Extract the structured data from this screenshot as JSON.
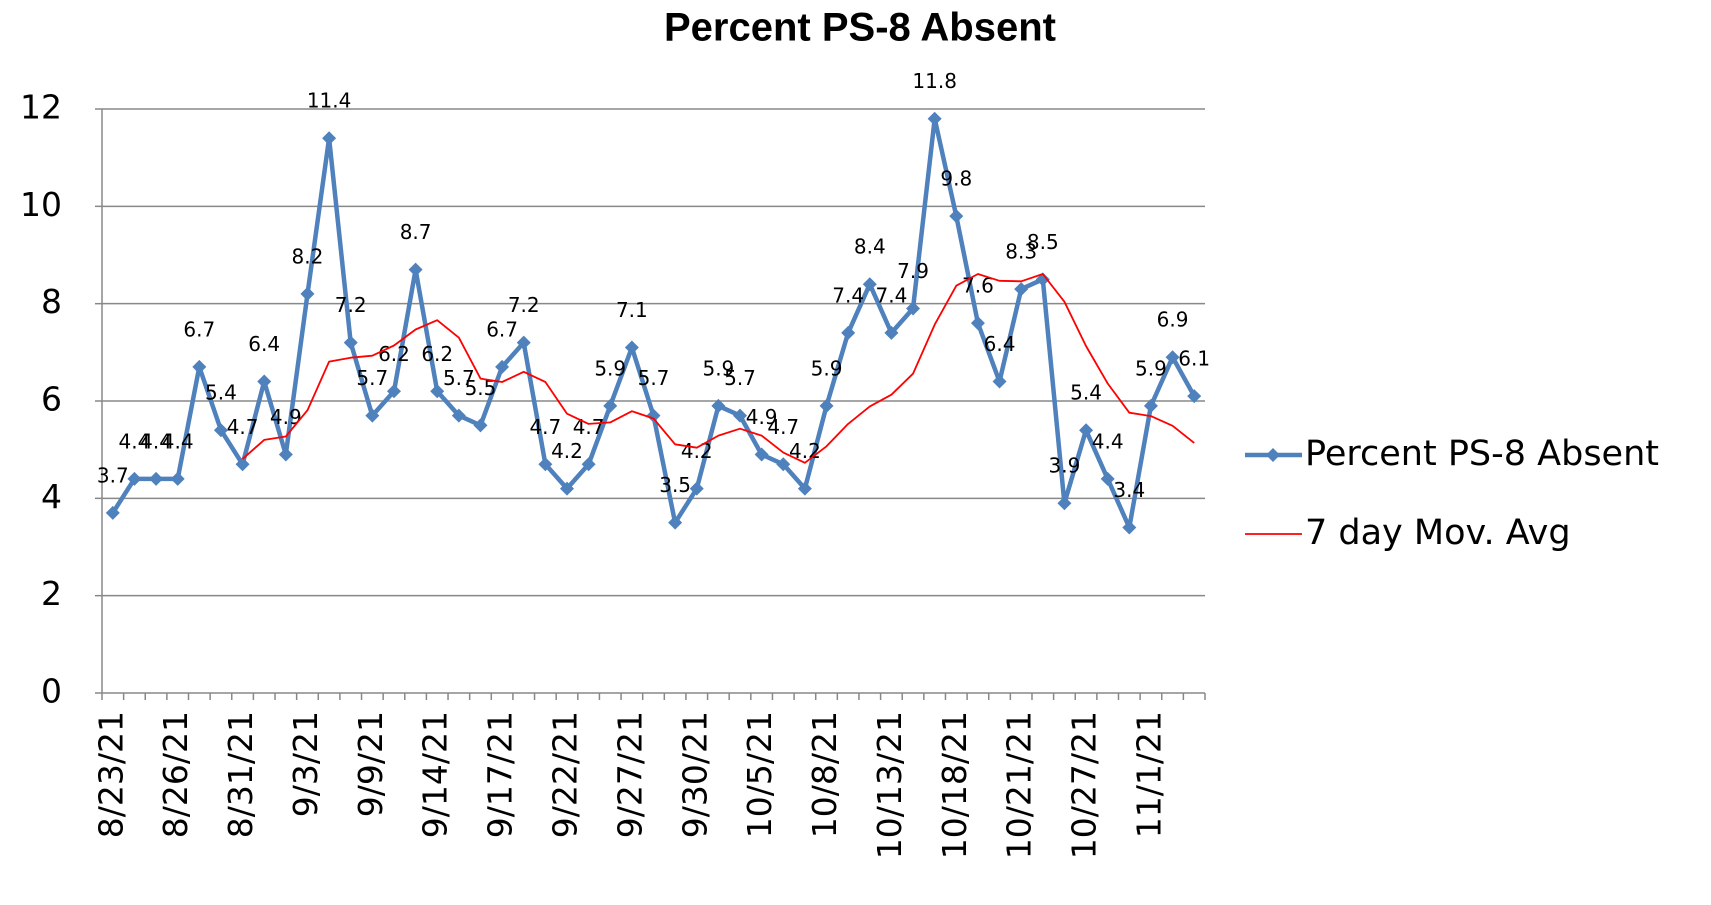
{
  "chart_data": {
    "type": "line",
    "title": "Percent PS-8 Absent",
    "categories": [
      "8/23/21",
      null,
      null,
      "8/26/21",
      null,
      null,
      "8/31/21",
      null,
      null,
      "9/3/21",
      null,
      null,
      "9/9/21",
      null,
      null,
      "9/14/21",
      null,
      null,
      "9/17/21",
      null,
      null,
      "9/22/21",
      null,
      null,
      "9/27/21",
      null,
      null,
      "9/30/21",
      null,
      null,
      "10/5/21",
      null,
      null,
      "10/8/21",
      null,
      null,
      "10/13/21",
      null,
      null,
      "10/18/21",
      null,
      null,
      "10/21/21",
      null,
      null,
      "10/27/21",
      null,
      null,
      "11/1/21",
      null,
      null
    ],
    "series": [
      {
        "name": "Percent PS-8 Absent",
        "color": "#4f81bd",
        "marker": "diamond",
        "data_labels": true,
        "values": [
          3.7,
          4.4,
          4.4,
          4.4,
          6.7,
          5.4,
          4.7,
          6.4,
          4.9,
          8.2,
          11.4,
          7.2,
          5.7,
          6.2,
          8.7,
          6.2,
          5.7,
          5.5,
          6.7,
          7.2,
          4.7,
          4.2,
          4.7,
          5.9,
          7.1,
          5.7,
          3.5,
          4.2,
          5.9,
          5.7,
          4.9,
          4.7,
          4.2,
          5.9,
          7.4,
          8.4,
          7.4,
          7.9,
          11.8,
          9.8,
          7.6,
          6.4,
          8.3,
          8.5,
          3.9,
          5.4,
          4.4,
          3.4,
          5.9,
          6.9,
          6.1
        ]
      },
      {
        "name": "7 day Mov. Avg",
        "color": "#ff0000",
        "marker": "none",
        "data_labels": false,
        "values": [
          null,
          null,
          null,
          null,
          null,
          null,
          4.81,
          5.2,
          5.27,
          5.81,
          6.81,
          6.89,
          6.93,
          7.14,
          7.47,
          7.66,
          7.3,
          6.46,
          6.39,
          6.6,
          6.39,
          5.74,
          5.53,
          5.56,
          5.79,
          5.64,
          5.11,
          5.04,
          5.29,
          5.43,
          5.29,
          4.94,
          4.73,
          5.07,
          5.53,
          5.89,
          6.13,
          6.56,
          7.57,
          8.37,
          8.61,
          8.47,
          8.46,
          8.61,
          8.04,
          7.13,
          6.36,
          5.76,
          5.69,
          5.49,
          5.14
        ]
      }
    ],
    "ylim": [
      0,
      12
    ],
    "yticks": [
      0,
      2,
      4,
      6,
      8,
      10,
      12
    ],
    "grid": true,
    "legend": "right"
  }
}
